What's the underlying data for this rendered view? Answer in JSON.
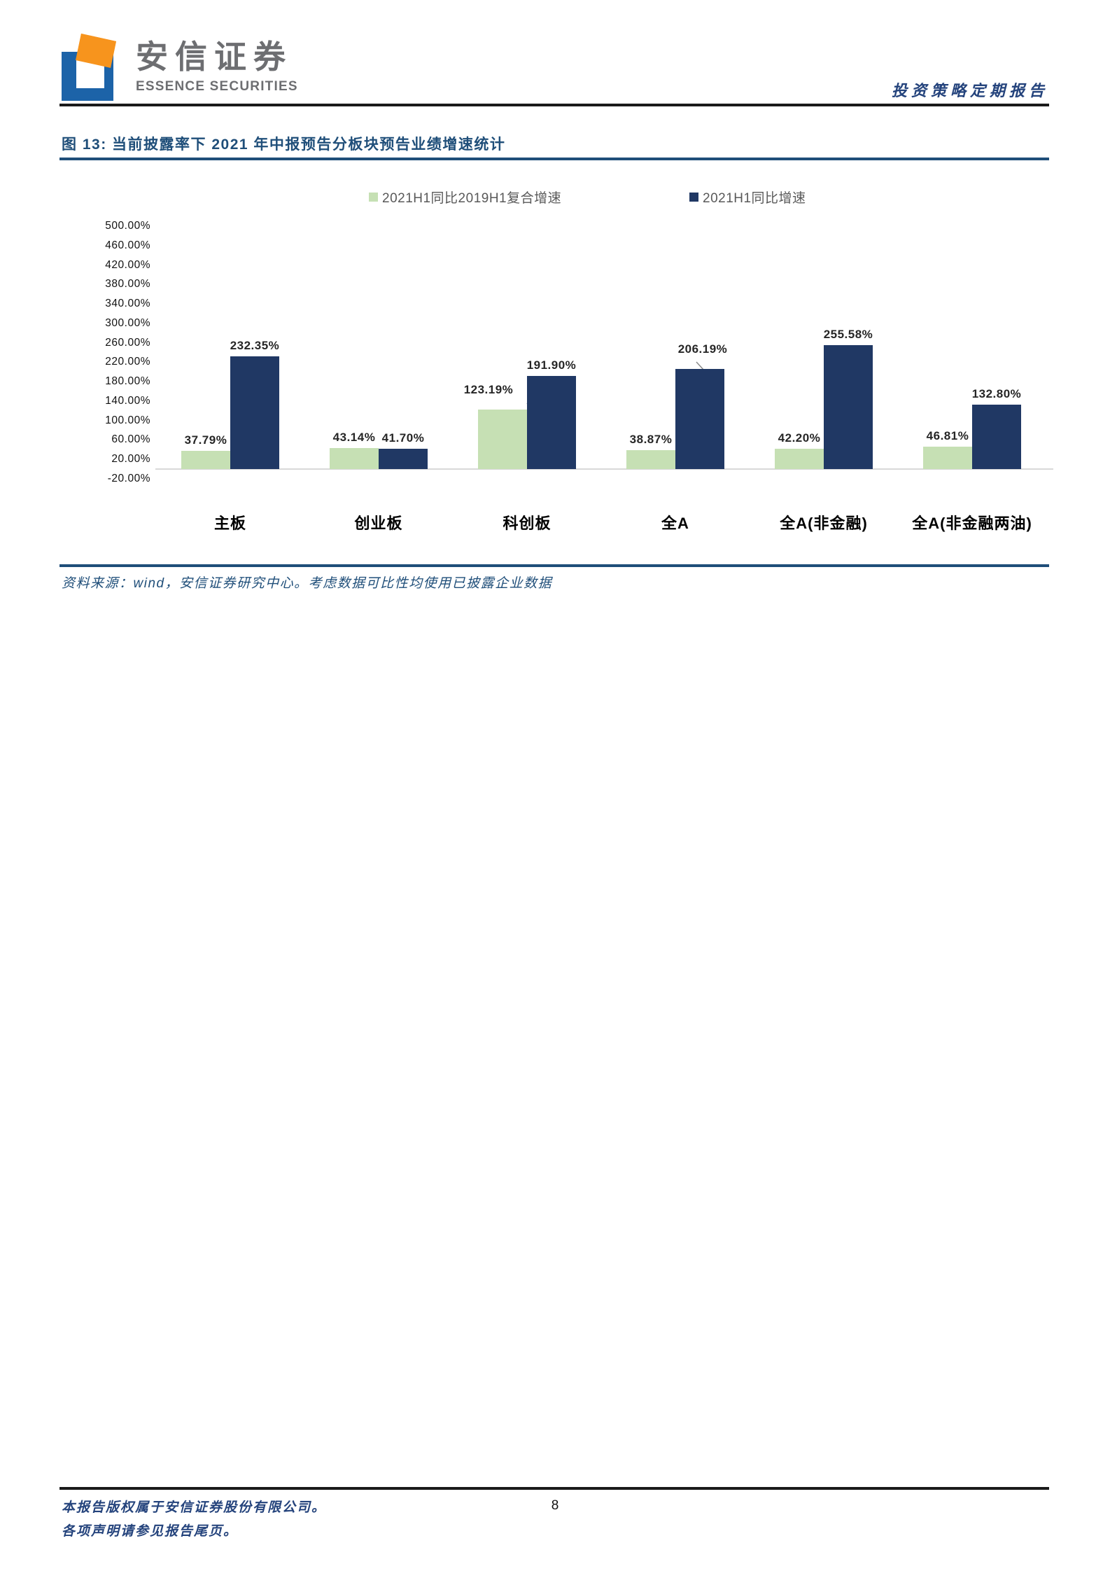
{
  "brand": {
    "name_cn": "安信证券",
    "name_en": "ESSENCE SECURITIES",
    "logo_colors": {
      "blue": "#1c63a8",
      "orange": "#f7941d"
    }
  },
  "header": {
    "report_type": "投资策略定期报告"
  },
  "figure": {
    "title": "图 13: 当前披露率下 2021 年中报预告分板块预告业绩增速统计",
    "source_note": "资料来源：wind，安信证券研究中心。考虑数据可比性均使用已披露企业数据"
  },
  "chart_data": {
    "type": "bar",
    "title": "",
    "categories": [
      "主板",
      "创业板",
      "科创板",
      "全A",
      "全A(非金融)",
      "全A(非金融两油)"
    ],
    "series": [
      {
        "name": "2021H1同比2019H1复合增速",
        "color": "#c6e0b4",
        "values": [
          37.79,
          43.14,
          123.19,
          38.87,
          42.2,
          46.81
        ]
      },
      {
        "name": "2021H1同比增速",
        "color": "#203864",
        "values": [
          232.35,
          41.7,
          191.9,
          206.19,
          255.58,
          132.8
        ]
      }
    ],
    "value_labels": [
      [
        "37.79%",
        "43.14%",
        "123.19%",
        "38.87%",
        "42.20%",
        "46.81%"
      ],
      [
        "232.35%",
        "41.70%",
        "191.90%",
        "206.19%",
        "255.58%",
        "132.80%"
      ]
    ],
    "ylim": [
      -20,
      500
    ],
    "ytick_step": 40,
    "ytick_suffix": "%",
    "grid": false,
    "legend_position": "top",
    "axis_color": "#d9d9d9"
  },
  "footer": {
    "line1": "本报告版权属于安信证券股份有限公司。",
    "line2": "各项声明请参见报告尾页。",
    "page_number": "8"
  },
  "colors": {
    "accent_blue": "#1f4e79",
    "header_rule": "#1a1a1a"
  }
}
